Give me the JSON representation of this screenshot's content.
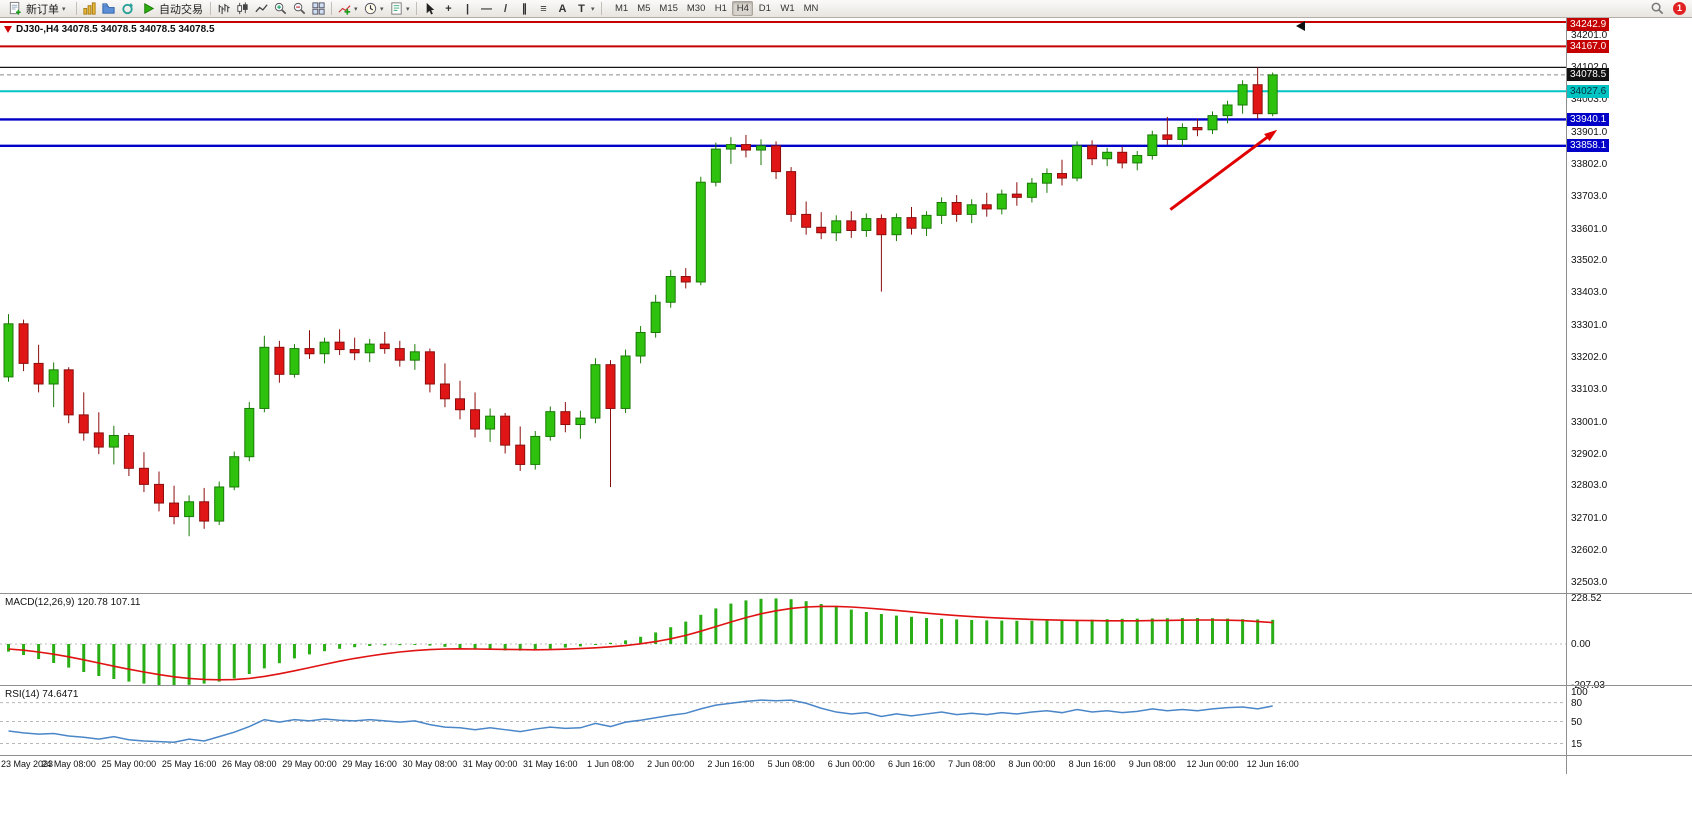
{
  "meta": {
    "app_kind": "mt4-trading-terminal"
  },
  "toolbar": {
    "new_order_label": "新订单",
    "autotrading_label": "自动交易",
    "timeframes": [
      "M1",
      "M5",
      "M15",
      "M30",
      "H1",
      "H4",
      "D1",
      "W1",
      "MN"
    ],
    "active_timeframe": "H4",
    "notification_count": "1"
  },
  "icons": {
    "dropdown": "▾",
    "crosshair": "+",
    "vertical_line": "|",
    "horizontal_line": "—",
    "trendline": "/",
    "channel": "∥",
    "fibonacci": "≡",
    "text": "A",
    "label": "T"
  },
  "chart": {
    "title": "DJ30-,H4 34078.5 34078.5 34078.5 34078.5",
    "symbol": "DJ30-",
    "period": "H4",
    "current_price_label": "34078.5"
  },
  "chart_data": {
    "type": "candlestick",
    "title": "DJ30-,H4",
    "current_price": 34078.5,
    "colors": {
      "up": "#2ec20e",
      "up_border": "#1b7a07",
      "down": "#e01616",
      "down_border": "#8c0d0d",
      "signal": "#e01212",
      "histogram": "#2aae16",
      "rsi": "#4a86c8"
    },
    "x_labels": [
      "23 May 2023",
      "24 May 08:00",
      "25 May 00:00",
      "25 May 16:00",
      "26 May 08:00",
      "29 May 00:00",
      "29 May 16:00",
      "30 May 08:00",
      "31 May 00:00",
      "31 May 16:00",
      "1 Jun 08:00",
      "2 Jun 00:00",
      "2 Jun 16:00",
      "5 Jun 08:00",
      "6 Jun 00:00",
      "6 Jun 16:00",
      "7 Jun 08:00",
      "8 Jun 00:00",
      "8 Jun 16:00",
      "9 Jun 08:00",
      "12 Jun 00:00",
      "12 Jun 16:00"
    ],
    "y_axis": {
      "grid": [
        "34201.0",
        "34102.0",
        "34003.0",
        "33901.0",
        "33802.0",
        "33703.0",
        "33601.0",
        "33502.0",
        "33403.0",
        "33301.0",
        "33202.0",
        "33103.0",
        "33001.0",
        "32902.0",
        "32803.0",
        "32701.0",
        "32602.0",
        "32503.0"
      ],
      "badges": [
        {
          "label": "34242.9",
          "bg": "#c40000",
          "fg": "#ffffff"
        },
        {
          "label": "34167.0",
          "bg": "#c40000",
          "fg": "#ffffff"
        },
        {
          "label": "34078.5",
          "bg": "#111111",
          "fg": "#ffffff"
        },
        {
          "label": "34027.6",
          "bg": "#00c4c4",
          "fg": "#00333a"
        },
        {
          "label": "33940.1",
          "bg": "#0000c8",
          "fg": "#ffffff"
        },
        {
          "label": "33858.1",
          "bg": "#0000c8",
          "fg": "#ffffff"
        }
      ]
    },
    "levels": [
      {
        "price": 34242.9,
        "color": "#c40000",
        "width": 2
      },
      {
        "price": 34167.0,
        "color": "#c40000",
        "width": 2
      },
      {
        "price": 34102.0,
        "color": "#151515",
        "width": 1.2
      },
      {
        "price": 34027.6,
        "color": "#00c4c4",
        "width": 2
      },
      {
        "price": 33940.1,
        "color": "#0000c8",
        "width": 2.4
      },
      {
        "price": 33858.1,
        "color": "#0000c8",
        "width": 2.4
      }
    ],
    "arrow": {
      "from": {
        "bar": 77.5,
        "price": 33660
      },
      "to": {
        "bar": 84.6,
        "price": 33908
      },
      "color": "#e00000"
    },
    "candles": [
      [
        33140,
        33335,
        33125,
        33305
      ],
      [
        33305,
        33318,
        33158,
        33182
      ],
      [
        33182,
        33240,
        33092,
        33118
      ],
      [
        33118,
        33185,
        33046,
        33162
      ],
      [
        33162,
        33170,
        32996,
        33022
      ],
      [
        33022,
        33092,
        32942,
        32966
      ],
      [
        32966,
        33030,
        32900,
        32922
      ],
      [
        32922,
        32988,
        32868,
        32958
      ],
      [
        32958,
        32966,
        32832,
        32856
      ],
      [
        32856,
        32906,
        32782,
        32806
      ],
      [
        32806,
        32846,
        32722,
        32748
      ],
      [
        32748,
        32802,
        32682,
        32706
      ],
      [
        32706,
        32772,
        32645,
        32752
      ],
      [
        32752,
        32795,
        32668,
        32692
      ],
      [
        32692,
        32815,
        32680,
        32798
      ],
      [
        32798,
        32908,
        32788,
        32892
      ],
      [
        32892,
        33062,
        32878,
        33042
      ],
      [
        33042,
        33268,
        33030,
        33232
      ],
      [
        33232,
        33252,
        33122,
        33148
      ],
      [
        33148,
        33242,
        33138,
        33228
      ],
      [
        33228,
        33285,
        33196,
        33212
      ],
      [
        33212,
        33262,
        33182,
        33248
      ],
      [
        33248,
        33288,
        33208,
        33225
      ],
      [
        33225,
        33262,
        33192,
        33215
      ],
      [
        33215,
        33258,
        33186,
        33242
      ],
      [
        33242,
        33280,
        33212,
        33228
      ],
      [
        33228,
        33252,
        33172,
        33192
      ],
      [
        33192,
        33242,
        33162,
        33218
      ],
      [
        33218,
        33228,
        33092,
        33118
      ],
      [
        33118,
        33182,
        33046,
        33072
      ],
      [
        33072,
        33128,
        33008,
        33038
      ],
      [
        33038,
        33092,
        32952,
        32978
      ],
      [
        32978,
        33042,
        32938,
        33018
      ],
      [
        33018,
        33028,
        32902,
        32928
      ],
      [
        32928,
        32986,
        32848,
        32868
      ],
      [
        32868,
        32972,
        32852,
        32955
      ],
      [
        32955,
        33048,
        32942,
        33032
      ],
      [
        33032,
        33062,
        32968,
        32992
      ],
      [
        32992,
        33035,
        32948,
        33012
      ],
      [
        33012,
        33198,
        32996,
        33178
      ],
      [
        33178,
        33192,
        32798,
        33042
      ],
      [
        33042,
        33225,
        33028,
        33205
      ],
      [
        33205,
        33298,
        33182,
        33278
      ],
      [
        33278,
        33395,
        33262,
        33372
      ],
      [
        33372,
        33472,
        33355,
        33452
      ],
      [
        33452,
        33478,
        33415,
        33435
      ],
      [
        33435,
        33762,
        33425,
        33745
      ],
      [
        33745,
        33868,
        33732,
        33848
      ],
      [
        33848,
        33885,
        33802,
        33862
      ],
      [
        33862,
        33892,
        33822,
        33845
      ],
      [
        33845,
        33878,
        33798,
        33858
      ],
      [
        33858,
        33872,
        33755,
        33778
      ],
      [
        33778,
        33792,
        33622,
        33645
      ],
      [
        33645,
        33685,
        33582,
        33605
      ],
      [
        33605,
        33652,
        33568,
        33588
      ],
      [
        33588,
        33642,
        33562,
        33625
      ],
      [
        33625,
        33655,
        33572,
        33595
      ],
      [
        33595,
        33648,
        33575,
        33632
      ],
      [
        33632,
        33645,
        33405,
        33582
      ],
      [
        33582,
        33648,
        33562,
        33635
      ],
      [
        33635,
        33668,
        33582,
        33602
      ],
      [
        33602,
        33655,
        33578,
        33642
      ],
      [
        33642,
        33698,
        33615,
        33682
      ],
      [
        33682,
        33705,
        33622,
        33645
      ],
      [
        33645,
        33692,
        33618,
        33675
      ],
      [
        33675,
        33712,
        33638,
        33662
      ],
      [
        33662,
        33722,
        33645,
        33708
      ],
      [
        33708,
        33745,
        33672,
        33698
      ],
      [
        33698,
        33758,
        33682,
        33742
      ],
      [
        33742,
        33788,
        33712,
        33772
      ],
      [
        33772,
        33815,
        33735,
        33758
      ],
      [
        33758,
        33872,
        33748,
        33858
      ],
      [
        33858,
        33875,
        33798,
        33818
      ],
      [
        33818,
        33852,
        33795,
        33838
      ],
      [
        33838,
        33855,
        33788,
        33805
      ],
      [
        33805,
        33842,
        33782,
        33828
      ],
      [
        33828,
        33905,
        33815,
        33892
      ],
      [
        33892,
        33948,
        33862,
        33878
      ],
      [
        33878,
        33928,
        33858,
        33915
      ],
      [
        33915,
        33942,
        33888,
        33908
      ],
      [
        33908,
        33965,
        33895,
        33952
      ],
      [
        33952,
        33998,
        33928,
        33985
      ],
      [
        33985,
        34062,
        33958,
        34048
      ],
      [
        34048,
        34102,
        33942,
        33958
      ],
      [
        33958,
        34086,
        33950,
        34078.5
      ]
    ],
    "macd": {
      "name": "MACD(12,26,9)",
      "value_main": "120.78",
      "value_signal": "107.11",
      "axis": [
        {
          "label": "228.52",
          "value": 228.52
        },
        {
          "label": "0.00",
          "value": 0
        },
        {
          "label": "-207.03",
          "value": -207.03
        }
      ],
      "histogram": [
        -38,
        -55,
        -75,
        -95,
        -118,
        -140,
        -160,
        -175,
        -188,
        -198,
        -205,
        -207,
        -204,
        -198,
        -188,
        -172,
        -150,
        -122,
        -96,
        -72,
        -52,
        -36,
        -24,
        -16,
        -10,
        -7,
        -6,
        -5,
        -8,
        -14,
        -20,
        -27,
        -30,
        -32,
        -33,
        -30,
        -24,
        -18,
        -12,
        -2,
        6,
        18,
        36,
        58,
        84,
        112,
        146,
        178,
        202,
        218,
        226,
        228,
        224,
        214,
        200,
        186,
        172,
        160,
        150,
        142,
        136,
        130,
        126,
        123,
        120,
        118,
        117,
        116,
        116,
        117,
        118,
        120,
        122,
        124,
        126,
        127,
        128,
        129,
        130,
        130,
        129,
        127,
        124,
        123,
        121
      ],
      "signal": [
        -25,
        -31,
        -40,
        -51,
        -64,
        -79,
        -95,
        -111,
        -126,
        -140,
        -153,
        -164,
        -172,
        -177,
        -179,
        -178,
        -172,
        -162,
        -149,
        -134,
        -118,
        -102,
        -86,
        -72,
        -60,
        -49,
        -40,
        -33,
        -28,
        -25,
        -24,
        -25,
        -26,
        -27,
        -28,
        -29,
        -28,
        -26,
        -23,
        -19,
        -14,
        -8,
        1,
        12,
        26,
        43,
        64,
        87,
        110,
        132,
        151,
        166,
        178,
        185,
        188,
        188,
        185,
        180,
        174,
        168,
        161,
        154,
        148,
        142,
        137,
        133,
        129,
        126,
        123,
        121,
        119,
        118,
        117,
        116,
        116,
        116,
        117,
        118,
        119,
        120,
        120,
        119,
        117,
        112,
        107
      ]
    },
    "rsi": {
      "name": "RSI(14)",
      "value": "74.6471",
      "levels": [
        {
          "label": "100",
          "value": 100,
          "line": false
        },
        {
          "label": "80",
          "value": 80,
          "line": true
        },
        {
          "label": "50",
          "value": 50,
          "line": true
        },
        {
          "label": "15",
          "value": 15,
          "line": true
        }
      ],
      "values": [
        35,
        32,
        30,
        31,
        27,
        25,
        22,
        26,
        21,
        19,
        18,
        17,
        22,
        19,
        26,
        33,
        42,
        53,
        49,
        53,
        51,
        54,
        52,
        51,
        53,
        51,
        49,
        51,
        45,
        41,
        40,
        37,
        40,
        37,
        34,
        38,
        41,
        39,
        40,
        47,
        42,
        49,
        52,
        56,
        60,
        63,
        70,
        76,
        79,
        82,
        84,
        83,
        84,
        79,
        71,
        65,
        62,
        64,
        58,
        62,
        59,
        62,
        65,
        61,
        63,
        61,
        64,
        62,
        65,
        67,
        64,
        69,
        65,
        67,
        64,
        66,
        70,
        67,
        69,
        67,
        70,
        72,
        73,
        70,
        74.65
      ]
    }
  }
}
